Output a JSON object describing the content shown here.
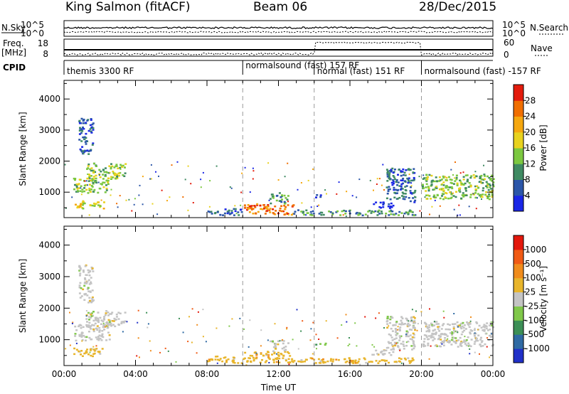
{
  "header": {
    "station": "King Salmon (fitACF)",
    "beam": "Beam 06",
    "date": "28/Dec/2015"
  },
  "strip": {
    "nsky_label": "N.Sky",
    "nsearch_label": "N.Search",
    "freq_label": "Freq.",
    "freq_unit": "[MHz]",
    "nave_label": "Nave",
    "cpid_label": "CPID",
    "nsky_ticks": [
      "10^5",
      "10^0"
    ],
    "nsearch_ticks": [
      "10^5",
      "10^0"
    ],
    "freq_ticks": [
      "18",
      "8"
    ],
    "nave_ticks": [
      "60",
      "0"
    ]
  },
  "cpid": [
    {
      "label": "themis 3300 RF",
      "start": 0,
      "end": 10
    },
    {
      "label": "normalsound (fast) 157 RF",
      "start": 10,
      "end": 14
    },
    {
      "label": "normal (fast) 151 RF",
      "start": 14,
      "end": 20
    },
    {
      "label": "normalsound (fast) -157 RF",
      "start": 20,
      "end": 24
    }
  ],
  "chart_data": [
    {
      "type": "heatmap",
      "quantity": "power",
      "ylabel": "Slant Range [km]",
      "xlabel": "",
      "xlim": [
        0,
        24
      ],
      "ylim": [
        180,
        4600
      ],
      "yticks": [
        1000,
        2000,
        3000,
        4000
      ],
      "colorbar_label": "Power [dB]",
      "colorbar_ticks": [
        "4",
        "8",
        "12",
        "16",
        "20",
        "24",
        "28"
      ],
      "colorbar_colors": [
        "#1a26e6",
        "#2b56a8",
        "#3f8a62",
        "#7cc840",
        "#e8d21e",
        "#f5a70f",
        "#f06e00",
        "#e31b0c"
      ],
      "grid": "vertical dashed lines at 10:00, 14:00 and 20:00",
      "regions": [
        {
          "t0": 0.5,
          "t1": 2.5,
          "r0": 1000,
          "r1": 1500,
          "level": 3
        },
        {
          "t0": 1.2,
          "t1": 3.4,
          "r0": 1450,
          "r1": 1950,
          "level": 3
        },
        {
          "t0": 0.4,
          "t1": 2.2,
          "r0": 500,
          "r1": 750,
          "level": 4
        },
        {
          "t0": 0.8,
          "t1": 1.6,
          "r0": 2200,
          "r1": 3400,
          "level": 1
        },
        {
          "t0": 8.0,
          "t1": 10.0,
          "r0": 280,
          "r1": 500,
          "level": 1
        },
        {
          "t0": 10.0,
          "t1": 12.8,
          "r0": 300,
          "r1": 650,
          "level": 6
        },
        {
          "t0": 11.5,
          "t1": 12.5,
          "r0": 650,
          "r1": 1000,
          "level": 2
        },
        {
          "t0": 12.8,
          "t1": 19.6,
          "r0": 280,
          "r1": 450,
          "level": 2
        },
        {
          "t0": 14.0,
          "t1": 14.6,
          "r0": 850,
          "r1": 950,
          "level": 0
        },
        {
          "t0": 17.2,
          "t1": 18.4,
          "r0": 500,
          "r1": 700,
          "level": 0
        },
        {
          "t0": 18.0,
          "t1": 19.6,
          "r0": 700,
          "r1": 1800,
          "level": 1
        },
        {
          "t0": 20.0,
          "t1": 24.0,
          "r0": 800,
          "r1": 1600,
          "level": 3
        }
      ]
    },
    {
      "type": "heatmap",
      "quantity": "velocity",
      "ylabel": "Slant Range [km]",
      "xlabel": "Time UT",
      "xlim": [
        0,
        24
      ],
      "ylim": [
        180,
        4600
      ],
      "yticks": [
        1000,
        2000,
        3000,
        4000
      ],
      "xticks": [
        "00:00",
        "04:00",
        "08:00",
        "12:00",
        "16:00",
        "20:00",
        "00:00"
      ],
      "colorbar_label": "Velocity [m s⁻¹]",
      "colorbar_ticks": [
        "1000",
        "500",
        "100",
        "25",
        "-25",
        "-100",
        "-500",
        "-1000"
      ],
      "colorbar_colors": [
        "#2030c8",
        "#2f6aa3",
        "#3c8f56",
        "#80c84a",
        "#c4c4c4",
        "#e8b52b",
        "#f08c1c",
        "#f05a14",
        "#e3180c"
      ],
      "grid": "vertical dashed lines at 10:00, 14:00 and 20:00",
      "regions": [
        {
          "t0": 0.5,
          "t1": 2.5,
          "r0": 1000,
          "r1": 1500,
          "level": 4
        },
        {
          "t0": 1.2,
          "t1": 3.4,
          "r0": 1450,
          "r1": 1950,
          "level": 4
        },
        {
          "t0": 0.4,
          "t1": 2.2,
          "r0": 500,
          "r1": 750,
          "level": 5
        },
        {
          "t0": 0.8,
          "t1": 1.6,
          "r0": 2200,
          "r1": 3400,
          "level": 4
        },
        {
          "t0": 8.0,
          "t1": 10.0,
          "r0": 280,
          "r1": 500,
          "level": 5
        },
        {
          "t0": 10.0,
          "t1": 12.8,
          "r0": 300,
          "r1": 650,
          "level": 5
        },
        {
          "t0": 11.5,
          "t1": 12.5,
          "r0": 650,
          "r1": 1000,
          "level": 4
        },
        {
          "t0": 12.8,
          "t1": 19.6,
          "r0": 280,
          "r1": 450,
          "level": 5
        },
        {
          "t0": 14.0,
          "t1": 14.6,
          "r0": 850,
          "r1": 950,
          "level": 3
        },
        {
          "t0": 17.2,
          "t1": 18.4,
          "r0": 500,
          "r1": 700,
          "level": 4
        },
        {
          "t0": 18.0,
          "t1": 19.6,
          "r0": 700,
          "r1": 1800,
          "level": 4
        },
        {
          "t0": 20.0,
          "t1": 24.0,
          "r0": 800,
          "r1": 1600,
          "level": 4
        }
      ]
    }
  ]
}
